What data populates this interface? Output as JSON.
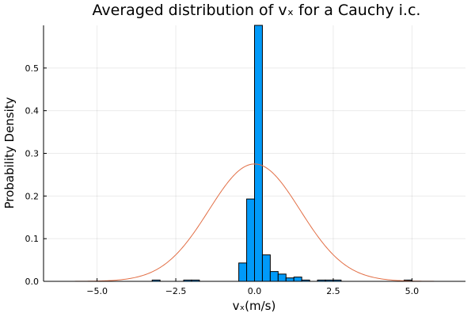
{
  "chart_data": {
    "type": "bar",
    "title": "Averaged distribution of vₓ for a Cauchy i.c.",
    "xlabel": "vₓ(m/s)",
    "ylabel": "Probability Density",
    "xlim": [
      -6.7,
      6.7
    ],
    "ylim": [
      0,
      0.6
    ],
    "x_ticks": [
      -5.0,
      -2.5,
      0.0,
      2.5,
      5.0
    ],
    "x_tick_labels": [
      "−5.0",
      "−2.5",
      "0.0",
      "2.5",
      "5.0"
    ],
    "y_ticks": [
      0.0,
      0.1,
      0.2,
      0.3,
      0.4,
      0.5
    ],
    "y_tick_labels": [
      "0.0",
      "0.1",
      "0.2",
      "0.3",
      "0.4",
      "0.5"
    ],
    "grid": true,
    "legend": "none",
    "bin_width": 0.25,
    "histogram": {
      "bin_centers": [
        -3.125,
        -2.125,
        -1.875,
        -0.375,
        -0.125,
        0.125,
        0.375,
        0.625,
        0.875,
        1.125,
        1.375,
        1.625,
        2.125,
        2.375,
        2.625,
        4.875
      ],
      "values": [
        0.003,
        0.003,
        0.003,
        0.043,
        0.193,
        0.6,
        0.062,
        0.023,
        0.017,
        0.008,
        0.01,
        0.003,
        0.003,
        0.003,
        0.003,
        0.003
      ],
      "color": "#009af9"
    },
    "overlay_curve": {
      "type": "normal_pdf",
      "mean": 0.0,
      "std": 1.45,
      "color": "#e26f46"
    }
  }
}
